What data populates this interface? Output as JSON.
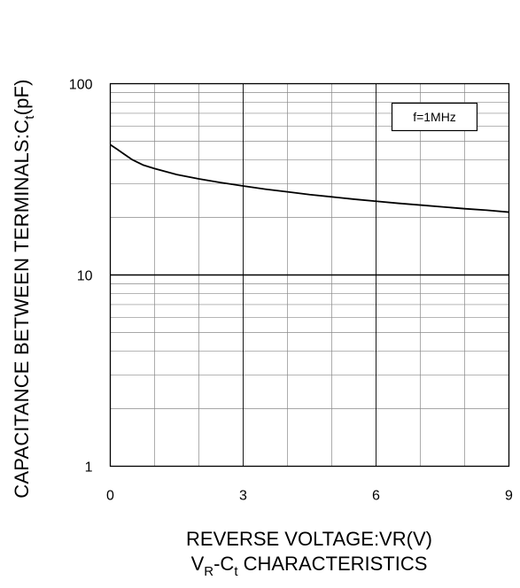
{
  "chart_data": {
    "type": "line",
    "xlabel": "REVERSE VOLTAGE:VR(V)",
    "ylabel": {
      "main": "CAPACITANCE BETWEEN TERMINALS:C",
      "sub": "t",
      "unit": "(pF)"
    },
    "caption": {
      "v": "V",
      "r": "R",
      "dash": "-C",
      "t": "t",
      "rest": " CHARACTERISTICS"
    },
    "legend": "f=1MHz",
    "legend_position": "top-right",
    "xlim": [
      0,
      9
    ],
    "ylim": [
      1,
      100
    ],
    "yscale": "log",
    "grid": true,
    "xticks": [
      {
        "value": 0,
        "label": "0"
      },
      {
        "value": 3,
        "label": "3"
      },
      {
        "value": 6,
        "label": "6"
      },
      {
        "value": 9,
        "label": "9"
      }
    ],
    "yticks": [
      {
        "value": 1,
        "label": "1"
      },
      {
        "value": 10,
        "label": "10"
      },
      {
        "value": 100,
        "label": "100"
      }
    ],
    "series": [
      {
        "x": [
          0,
          0.15,
          0.3,
          0.5,
          0.75,
          1,
          1.5,
          2,
          2.5,
          3,
          3.5,
          4,
          4.5,
          5,
          5.5,
          6,
          6.5,
          7,
          7.5,
          8,
          8.5,
          9
        ],
        "y": [
          48,
          45.5,
          43,
          40,
          37.5,
          36,
          33.5,
          31.8,
          30.4,
          29.2,
          28.1,
          27.2,
          26.3,
          25.6,
          24.9,
          24.3,
          23.7,
          23.2,
          22.7,
          22.2,
          21.8,
          21.3
        ]
      }
    ]
  }
}
